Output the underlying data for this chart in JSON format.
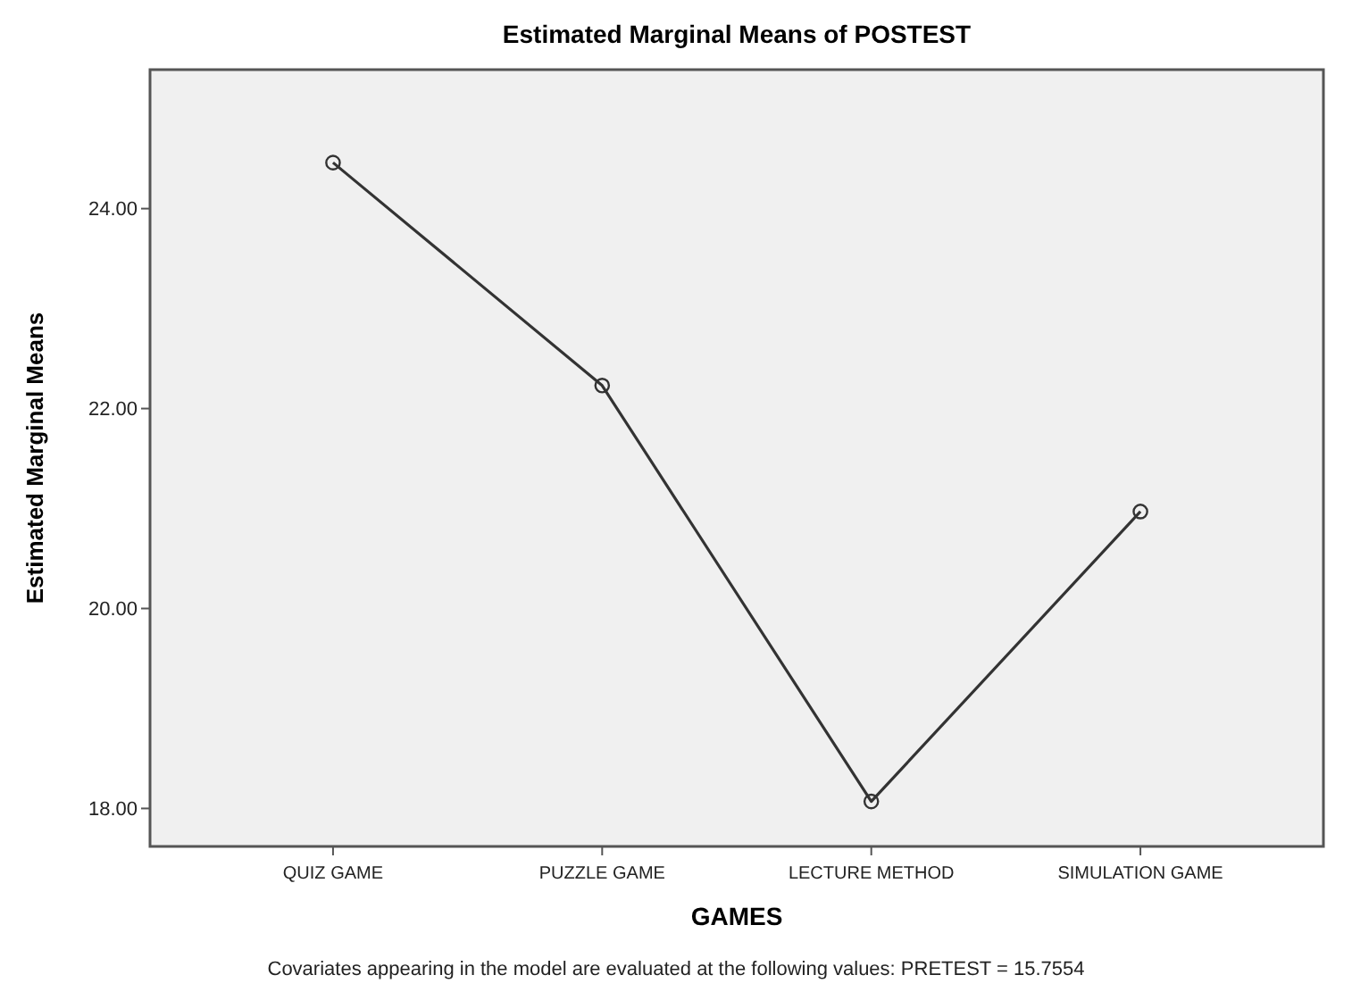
{
  "chart_data": {
    "type": "line",
    "title": "Estimated Marginal Means of POSTEST",
    "xlabel": "GAMES",
    "ylabel": "Estimated Marginal Means",
    "categories": [
      "QUIZ GAME",
      "PUZZLE GAME",
      "LECTURE METHOD",
      "SIMULATION GAME"
    ],
    "series": [
      {
        "color": "#333333",
        "values": [
          24.46,
          22.23,
          18.07,
          20.97
        ]
      }
    ],
    "ylim": [
      17.62,
      25.39
    ],
    "yticks": [
      {
        "value": 18,
        "label": "18.00"
      },
      {
        "value": 20,
        "label": "20.00"
      },
      {
        "value": 22,
        "label": "22.00"
      },
      {
        "value": 24,
        "label": "24.00"
      }
    ],
    "marker": "circle",
    "line_style": "solid",
    "grid": false,
    "annotations": [
      "Covariates appearing in the model are evaluated at the following values: PRETEST = 15.7554"
    ]
  }
}
